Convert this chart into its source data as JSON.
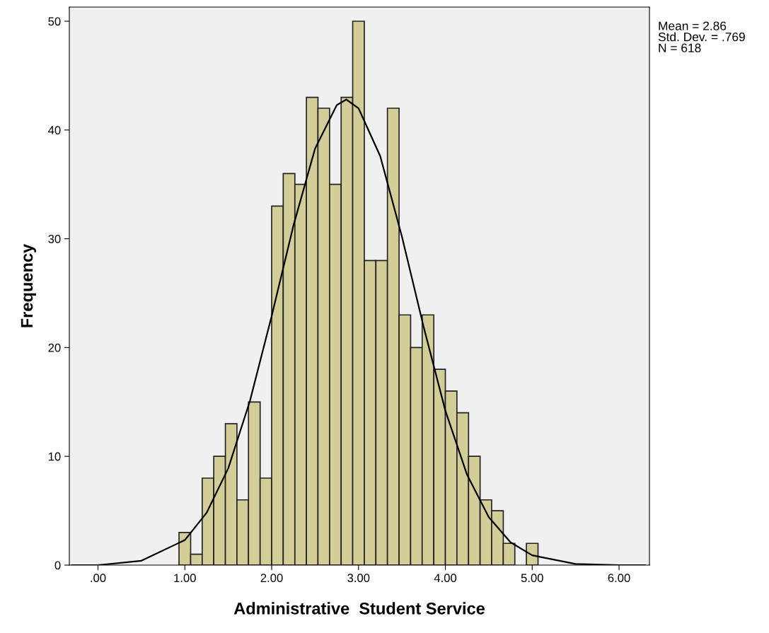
{
  "chart_data": {
    "type": "histogram",
    "xlabel": "Administrative  Student Service",
    "ylabel": "Frequency",
    "annotations": [
      "Mean = 2.86\nStd. Dev. = .769\nN = 618"
    ],
    "bins": [
      0.933,
      1.067,
      1.2,
      1.333,
      1.467,
      1.6,
      1.733,
      1.867,
      2,
      2.133,
      2.267,
      2.4,
      2.533,
      2.667,
      2.8,
      2.933,
      3.067,
      3.2,
      3.333,
      3.467,
      3.6,
      3.733,
      3.867,
      4,
      4.133,
      4.267,
      4.4,
      4.533,
      4.667,
      4.8,
      4.933,
      5.067
    ],
    "values": [
      3,
      1,
      8,
      10,
      13,
      6,
      15,
      8,
      33,
      36,
      35,
      43,
      42,
      35,
      43,
      50,
      28,
      28,
      42,
      23,
      20,
      23,
      18,
      16,
      14,
      10,
      6,
      5,
      2,
      0,
      2
    ],
    "color": "#d3ce97",
    "series": [
      {
        "type": "line",
        "color": "#000000",
        "x": [
          -0.3,
          0,
          0.5,
          1,
          1.25,
          1.5,
          1.75,
          2,
          2.25,
          2.5,
          2.75,
          2.86,
          3,
          3.25,
          3.5,
          3.75,
          4,
          4.25,
          4.5,
          4.75,
          5,
          5.5,
          6,
          6.3
        ],
        "values": [
          0.0,
          0.0,
          0.4,
          2.3,
          4.8,
          8.9,
          15.1,
          22.9,
          31.2,
          38.3,
          42.3,
          42.8,
          42.0,
          37.6,
          30.2,
          21.9,
          14.2,
          8.3,
          4.4,
          2.1,
          0.9,
          0.1,
          0.0,
          0.0
        ]
      }
    ],
    "xlim": [
      -0.33,
      6.35
    ],
    "ylim": [
      0,
      51.3
    ],
    "xticks": [
      {
        "value": 0,
        "label": ".00"
      },
      {
        "value": 1,
        "label": "1.00"
      },
      {
        "value": 2,
        "label": "2.00"
      },
      {
        "value": 3,
        "label": "3.00"
      },
      {
        "value": 4,
        "label": "4.00"
      },
      {
        "value": 5,
        "label": "5.00"
      },
      {
        "value": 6,
        "label": "6.00"
      }
    ],
    "yticks": [
      0,
      10,
      20,
      30,
      40,
      50
    ],
    "grid": false,
    "legend": false
  }
}
